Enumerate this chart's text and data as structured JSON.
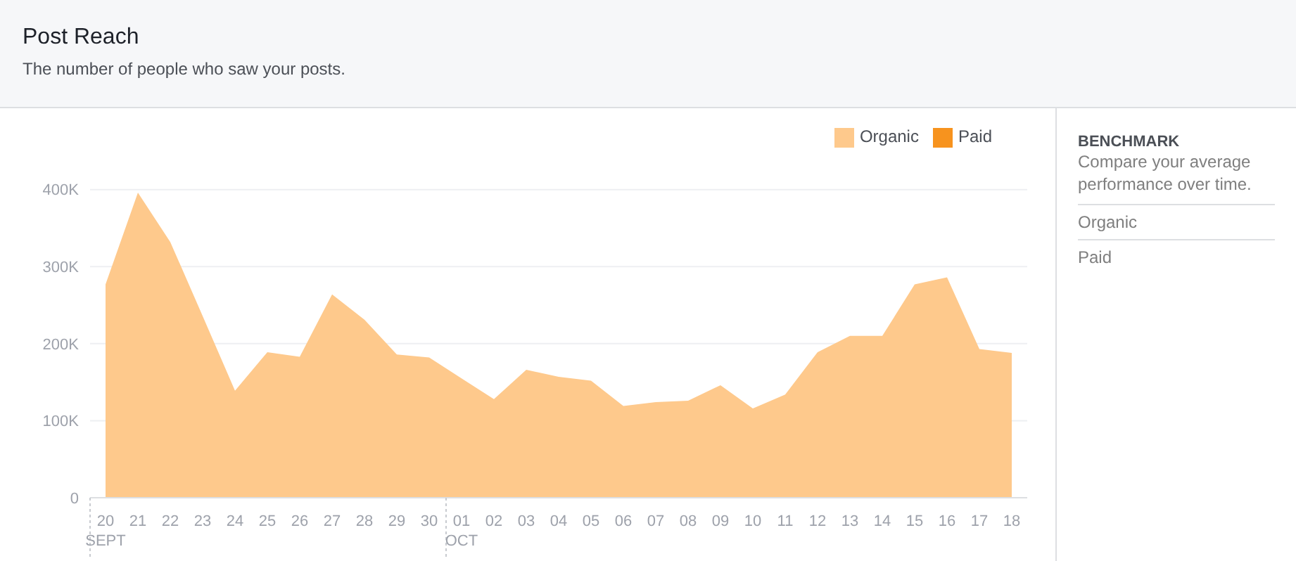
{
  "chart_data": {
    "type": "area",
    "title": "Post Reach",
    "subtitle": "The number of people who saw your posts.",
    "categories": [
      "20\nSEPT",
      "21",
      "22",
      "23",
      "24",
      "25",
      "26",
      "27",
      "28",
      "29",
      "30",
      "01\nOCT",
      "02",
      "03",
      "04",
      "05",
      "06",
      "07",
      "08",
      "09",
      "10",
      "11",
      "12",
      "13",
      "14",
      "15",
      "16",
      "17",
      "18"
    ],
    "series": [
      {
        "name": "Organic",
        "color": "#fec98c",
        "values": [
          277000,
          396000,
          332000,
          236000,
          139000,
          189000,
          183000,
          264000,
          231000,
          186000,
          182000,
          155000,
          128000,
          166000,
          157000,
          152000,
          119000,
          124000,
          126000,
          146000,
          116000,
          134000,
          189000,
          210000,
          210000,
          277000,
          286000,
          193000,
          188000
        ]
      },
      {
        "name": "Paid",
        "color": "#f7931e",
        "values": [
          null,
          null,
          null,
          null,
          null,
          null,
          null,
          null,
          null,
          null,
          null,
          null,
          null,
          null,
          null,
          null,
          null,
          null,
          null,
          null,
          null,
          null,
          null,
          null,
          null,
          null,
          null,
          null,
          null
        ]
      }
    ],
    "ylim": [
      0,
      400000
    ],
    "yticks": [
      0,
      {
        "value": 100000,
        "label": "100K"
      },
      {
        "value": 200000,
        "label": "200K"
      },
      {
        "value": 300000,
        "label": "300K"
      },
      {
        "value": 400000,
        "label": "400K"
      }
    ],
    "grid": "y",
    "legend": "top right",
    "annotations": [
      "BENCHMARK",
      "Compare your average performance over time.",
      "Organic",
      "Paid"
    ]
  }
}
